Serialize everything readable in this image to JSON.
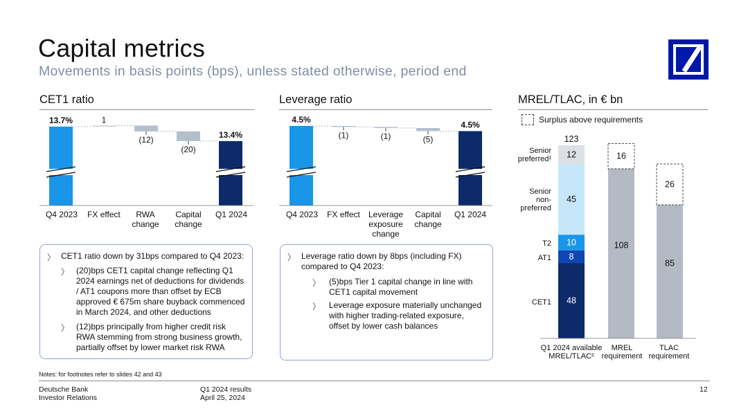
{
  "header": {
    "title": "Capital metrics",
    "subtitle": "Movements in basis points (bps), unless stated otherwise, period end"
  },
  "colors": {
    "start_bar": "#1a96e8",
    "end_bar": "#0d2b6b",
    "neg_bar": "#b4bfce",
    "cet1": "#0d2b6b",
    "at1": "#1046b4",
    "t2": "#1a96e8",
    "senior_non_preferred": "#c6e6fa",
    "senior_preferred": "#dde0e6",
    "requirement": "#b4bac4"
  },
  "chart_data": [
    {
      "type": "bar",
      "subtype": "waterfall",
      "title": "CET1 ratio",
      "categories": [
        "Q4 2023",
        "FX effect",
        "RWA\nchange",
        "Capital\nchange",
        "Q1 2024"
      ],
      "values_bps": [
        1370,
        1,
        -12,
        -20,
        1340
      ],
      "labels": [
        "13.7%",
        "1",
        "(12)",
        "(20)",
        "13.4%"
      ],
      "axis_break": true
    },
    {
      "type": "bar",
      "subtype": "waterfall",
      "title": "Leverage ratio",
      "categories": [
        "Q4 2023",
        "FX effect",
        "Leverage\nexposure\nchange",
        "Capital\nchange",
        "Q1 2024"
      ],
      "values_bps": [
        450,
        -1,
        -1,
        -5,
        450
      ],
      "labels": [
        "4.5%",
        "(1)",
        "(1)",
        "(5)",
        "4.5%"
      ],
      "axis_break": true
    },
    {
      "type": "bar",
      "subtype": "stacked",
      "title": "MREL/TLAC, in € bn",
      "legend": "Surplus above requirements",
      "categories": [
        "Q1 2024 available\nMREL/TLAC²",
        "MREL\nrequirement",
        "TLAC\nrequirement"
      ],
      "available": {
        "total": 123,
        "segments": [
          {
            "name": "CET1",
            "value": 48
          },
          {
            "name": "AT1",
            "value": 8
          },
          {
            "name": "T2",
            "value": 10
          },
          {
            "name": "Senior\nnon-\npreferred",
            "value": 45
          },
          {
            "name": "Senior\npreferred¹",
            "value": 12
          }
        ]
      },
      "requirements": [
        {
          "category": "MREL requirement",
          "requirement": 108,
          "surplus": 16
        },
        {
          "category": "TLAC requirement",
          "requirement": 85,
          "surplus": 26
        }
      ]
    }
  ],
  "cet1_box": {
    "main": "CET1 ratio down by 31bps compared to Q4 2023:",
    "items": [
      "(20)bps CET1 capital change reflecting Q1\n2024 earnings net of deductions for dividends\n/ AT1 coupons more than offset by ECB\napproved € 675m share buyback commenced\nin March 2024, and other deductions",
      "(12)bps principally from higher credit risk\nRWA stemming from strong business growth,\npartially offset by lower market risk RWA"
    ]
  },
  "leverage_box": {
    "main": "Leverage ratio down by 8bps (including FX)\ncompared to Q4 2023:",
    "items": [
      "(5)bps Tier 1 capital change in line with\nCET1 capital movement",
      "Leverage exposure materially unchanged\nwith higher trading-related exposure,\noffset by lower cash balances"
    ]
  },
  "notes": "Notes: for footnotes refer to slides 42 and 43",
  "footer": {
    "company": "Deutsche Bank\nInvestor Relations",
    "report": "Q1 2024 results\nApril 25, 2024",
    "page": "12"
  }
}
